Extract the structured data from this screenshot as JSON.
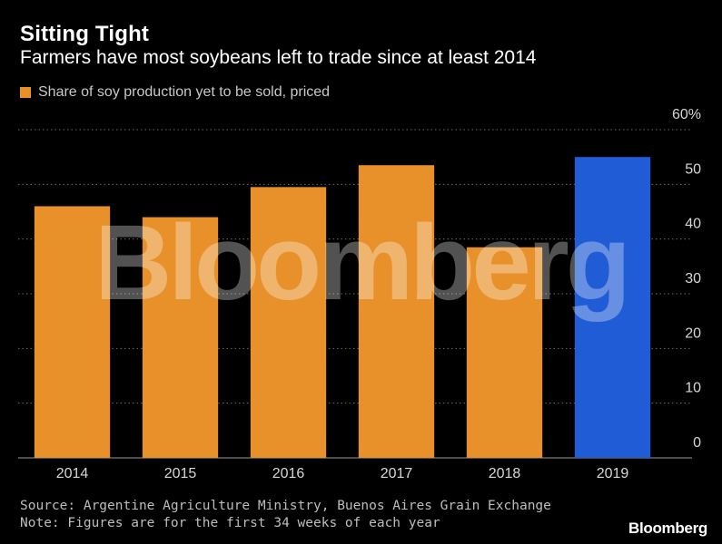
{
  "header": {
    "title": "Sitting Tight",
    "subtitle": "Farmers have most soybeans left to trade since at least 2014"
  },
  "legend": {
    "label": "Share of soy production yet to be sold, priced",
    "color": "#e8912a"
  },
  "chart_data": {
    "type": "bar",
    "categories": [
      "2014",
      "2015",
      "2016",
      "2017",
      "2018",
      "2019"
    ],
    "series": [
      {
        "name": "Share of soy production yet to be sold, priced",
        "values": [
          46,
          44,
          49.5,
          53.5,
          38.5,
          55
        ]
      }
    ],
    "bar_colors": [
      "#e8912a",
      "#e8912a",
      "#e8912a",
      "#e8912a",
      "#e8912a",
      "#1f5cd6"
    ],
    "ylim": [
      0,
      60
    ],
    "yticks": [
      0,
      10,
      20,
      30,
      40,
      50,
      60
    ],
    "ytick_labels": [
      "0",
      "10",
      "20",
      "30",
      "40",
      "50",
      "60%"
    ],
    "y_axis_side": "right",
    "grid": true,
    "legend_position": "top-left"
  },
  "footer": {
    "source": "Source: Argentine Agriculture Ministry, Buenos Aires Grain Exchange",
    "note": "Note: Figures are for the first 34 weeks of each year"
  },
  "branding": {
    "logo": "Bloomberg",
    "watermark": "Bloomberg"
  }
}
